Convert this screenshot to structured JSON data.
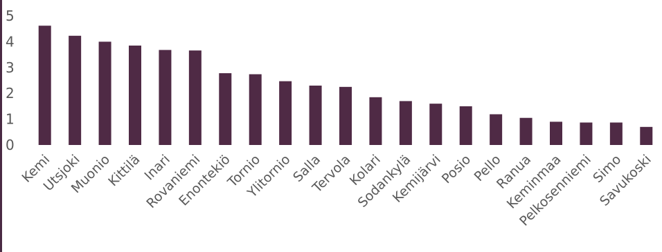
{
  "chart_data": {
    "type": "bar",
    "title": "",
    "xlabel": "",
    "ylabel": "",
    "ylim": [
      0,
      5
    ],
    "yticks": [
      0,
      1,
      2,
      3,
      4,
      5
    ],
    "grid": false,
    "legend": "none",
    "bar_color": "#4f2a45",
    "categories": [
      "Kemi",
      "Utsjoki",
      "Muonio",
      "Kittilä",
      "Inari",
      "Rovaniemi",
      "Enontekiö",
      "Tornio",
      "Ylitornio",
      "Salla",
      "Tervola",
      "Kolari",
      "Sodankylä",
      "Kemijärvi",
      "Posio",
      "Pello",
      "Ranua",
      "Keminmaa",
      "Pelkosenniemi",
      "Simo",
      "Savukoski"
    ],
    "values": [
      4.62,
      4.23,
      4.0,
      3.85,
      3.68,
      3.66,
      2.78,
      2.74,
      2.47,
      2.3,
      2.25,
      1.85,
      1.7,
      1.6,
      1.5,
      1.19,
      1.05,
      0.9,
      0.87,
      0.87,
      0.7
    ]
  }
}
